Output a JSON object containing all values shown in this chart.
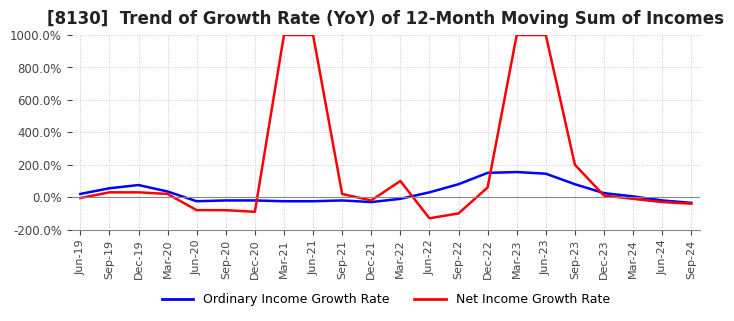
{
  "title": "[8130]  Trend of Growth Rate (YoY) of 12-Month Moving Sum of Incomes",
  "title_fontsize": 12,
  "ylim": [
    -200,
    1000
  ],
  "yticks": [
    -200,
    0,
    200,
    400,
    600,
    800,
    1000
  ],
  "legend_labels": [
    "Ordinary Income Growth Rate",
    "Net Income Growth Rate"
  ],
  "line_colors": [
    "blue",
    "red"
  ],
  "x_labels": [
    "Jun-19",
    "Sep-19",
    "Dec-19",
    "Mar-20",
    "Jun-20",
    "Sep-20",
    "Dec-20",
    "Mar-21",
    "Jun-21",
    "Sep-21",
    "Dec-21",
    "Mar-22",
    "Jun-22",
    "Sep-22",
    "Dec-22",
    "Mar-23",
    "Jun-23",
    "Sep-23",
    "Dec-23",
    "Mar-24",
    "Jun-24",
    "Sep-24"
  ],
  "ordinary_income": [
    20,
    55,
    75,
    35,
    -25,
    -20,
    -20,
    -25,
    -25,
    -20,
    -30,
    -10,
    30,
    80,
    150,
    155,
    145,
    80,
    25,
    5,
    -20,
    -35
  ],
  "net_income": [
    -5,
    30,
    30,
    20,
    -80,
    -80,
    -90,
    1000,
    1000,
    20,
    -20,
    100,
    -130,
    -100,
    60,
    1000,
    1000,
    200,
    10,
    -10,
    -30,
    -40
  ],
  "background_color": "#ffffff",
  "grid_color": "#c8c8c8",
  "grid_style": ":"
}
